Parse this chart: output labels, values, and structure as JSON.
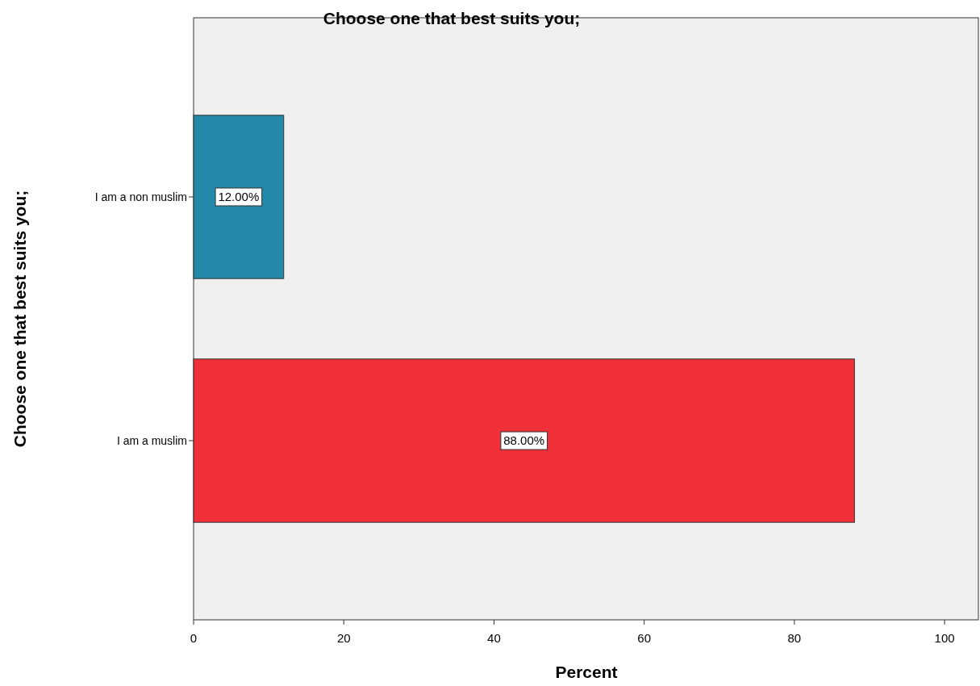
{
  "chart_data": {
    "type": "bar",
    "orientation": "horizontal",
    "title": "Choose one that best suits you;",
    "xlabel": "Percent",
    "ylabel": "Choose one that best suits you;",
    "categories": [
      "I am a non muslim",
      "I am a muslim"
    ],
    "values": [
      12,
      88
    ],
    "colors": [
      "#2389a9",
      "#ef3039"
    ],
    "value_labels": [
      "12.00%",
      "88.00%"
    ],
    "xlim": [
      0,
      104.5
    ],
    "xticks": [
      0,
      20,
      40,
      60,
      80,
      100
    ],
    "grid": false
  }
}
